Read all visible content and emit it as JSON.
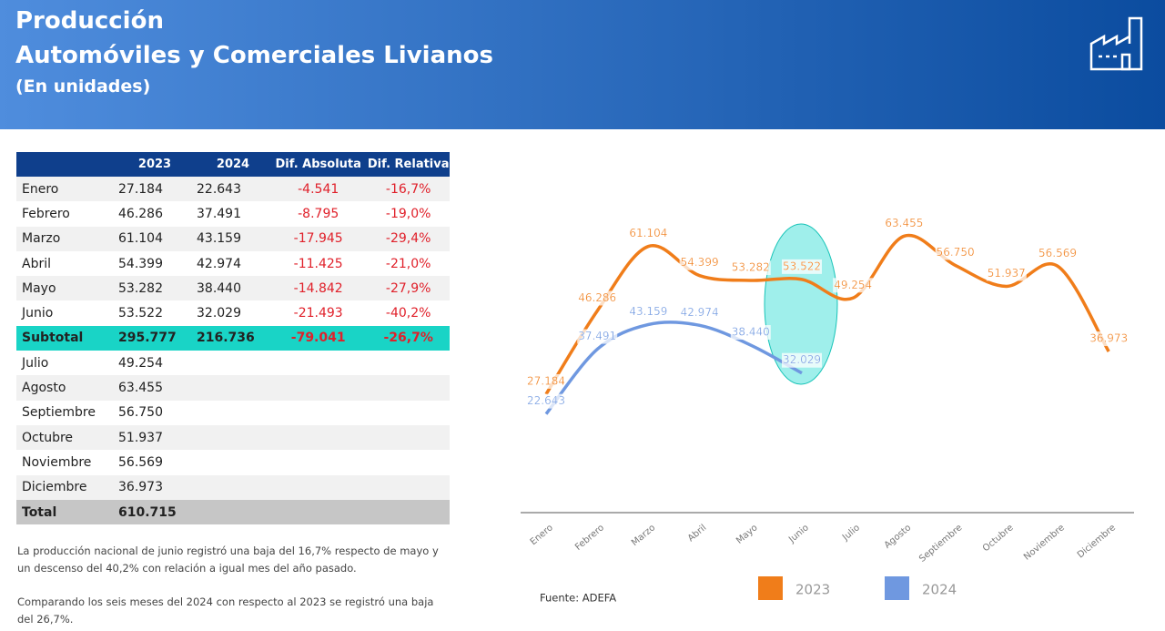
{
  "header": {
    "title": "Producción",
    "subtitle": "Automóviles y Comerciales Livianos",
    "unit": "(En unidades)"
  },
  "table": {
    "columns": [
      "2023",
      "2024",
      "Dif. Absoluta",
      "Dif. Relativa"
    ],
    "rows": [
      [
        "Enero",
        "27.184",
        "22.643",
        "-4.541",
        "-16,7%"
      ],
      [
        "Febrero",
        "46.286",
        "37.491",
        "-8.795",
        "-19,0%"
      ],
      [
        "Marzo",
        "61.104",
        "43.159",
        "-17.945",
        "-29,4%"
      ],
      [
        "Abril",
        "54.399",
        "42.974",
        "-11.425",
        "-21,0%"
      ],
      [
        "Mayo",
        "53.282",
        "38.440",
        "-14.842",
        "-27,9%"
      ],
      [
        "Junio",
        "53.522",
        "32.029",
        "-21.493",
        "-40,2%"
      ],
      [
        "Subtotal",
        "295.777",
        "216.736",
        "-79.041",
        "-26,7%"
      ],
      [
        "Julio",
        "49.254"
      ],
      [
        "Agosto",
        "63.455"
      ],
      [
        "Septiembre",
        "56.750"
      ],
      [
        "Octubre",
        "51.937"
      ],
      [
        "Noviembre",
        "56.569"
      ],
      [
        "Diciembre",
        "36.973"
      ],
      [
        "Total",
        "610.715"
      ]
    ]
  },
  "notes": [
    "La producción nacional de junio registró una baja del 16,7% respecto de mayo y un descenso del 40,2% con relación a igual mes del año pasado.",
    "Comparando los seis meses del 2024 con respecto al 2023 se registró una baja del 26,7%."
  ],
  "chart_data": {
    "type": "line",
    "categories": [
      "Enero",
      "Febrero",
      "Marzo",
      "Abril",
      "Mayo",
      "Junio",
      "Julio",
      "Agosto",
      "Septiembre",
      "Octubre",
      "Noviembre",
      "Diciembre"
    ],
    "series": [
      {
        "name": "2023",
        "color": "#f07d1a",
        "values": [
          27184,
          46286,
          61104,
          54399,
          53282,
          53522,
          49254,
          63455,
          56750,
          51937,
          56569,
          36973
        ],
        "value_labels": [
          "27.184",
          "46.286",
          "61.104",
          "54.399",
          "53.282",
          "53.522",
          "49.254",
          "63.455",
          "56.750",
          "51.937",
          "56.569",
          "36.973"
        ]
      },
      {
        "name": "2024",
        "color": "#6f98e0",
        "values": [
          22643,
          37491,
          43159,
          42974,
          38440,
          32029,
          null,
          null,
          null,
          null,
          null,
          null
        ],
        "value_labels": [
          "22.643",
          "37.491",
          "43.159",
          "42.974",
          "38.440",
          "32.029",
          null,
          null,
          null,
          null,
          null,
          null
        ]
      }
    ],
    "ylim": [
      0,
      70000
    ],
    "source": "Fuente: ADEFA"
  }
}
